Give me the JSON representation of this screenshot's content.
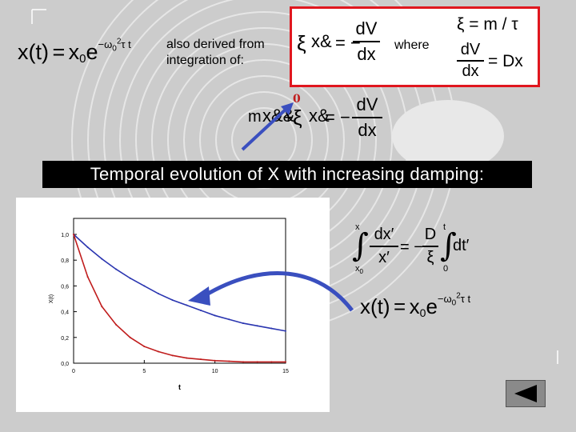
{
  "colors": {
    "banner_bg": "#000000",
    "banner_text": "#ffffff",
    "box_border": "#e0161e",
    "arrow": "#3a4fbf",
    "series_blue": "#2a35b0",
    "series_red": "#c01c1c"
  },
  "top_equation": {
    "lhs": "x(t)",
    "eq": "=",
    "base": "x",
    "sub": "0",
    "e": "e",
    "exp": "−ω",
    "exp_sub": "0",
    "exp_sup": "2",
    "exp_tail": "τ t"
  },
  "derived_text": {
    "line1": "also derived from",
    "line2": "integration of:"
  },
  "box": {
    "eq1": {
      "xi": "ξ",
      "xdot": "x&",
      "eq": "= −",
      "num": "dV",
      "den": "dx"
    },
    "where": "where",
    "eq2": "ξ = m / τ",
    "eq3": {
      "num": "dV",
      "den": "dx",
      "rhs": "= Dx"
    }
  },
  "middle_equation": {
    "m": "m",
    "xddot": "x&&",
    "plus": "+",
    "xi": "ξ",
    "xdot": "x&",
    "eq": "= −",
    "num": "dV",
    "den": "dx",
    "zero": "0"
  },
  "banner": "Temporal evolution of X with increasing damping:",
  "integral": {
    "upper1": "x",
    "lower1": "x",
    "lower1_sub": "0",
    "num1": "dx′",
    "den1": "x′",
    "eq": "= −",
    "num2": "D",
    "den2": "ξ",
    "upper2": "t",
    "lower2": "0",
    "int2": "dt′"
  },
  "bottom_equation": {
    "lhs": "x(t)",
    "eq": "=",
    "base": "x",
    "sub": "0",
    "e": "e",
    "exp": "−ω",
    "exp_sub": "0",
    "exp_sup": "2",
    "exp_tail": "τ t"
  },
  "chart_data": {
    "type": "line",
    "xlabel": "t",
    "ylabel": "X(t)",
    "xlim": [
      0,
      15
    ],
    "ylim": [
      0,
      1.0
    ],
    "x_ticks": [
      "0",
      "5",
      "10",
      "15"
    ],
    "y_ticks": [
      "1,0",
      "0,8",
      "0,6",
      "0,4",
      "0,2",
      "0,0"
    ],
    "series": [
      {
        "color": "#2a35b0",
        "x": [
          0,
          1,
          2,
          3,
          4,
          5,
          6,
          7,
          8,
          9,
          10,
          11,
          12,
          13,
          14,
          15
        ],
        "values": [
          1.0,
          0.9,
          0.81,
          0.73,
          0.66,
          0.6,
          0.54,
          0.49,
          0.45,
          0.41,
          0.37,
          0.34,
          0.31,
          0.29,
          0.27,
          0.25
        ]
      },
      {
        "color": "#c01c1c",
        "x": [
          0,
          1,
          2,
          3,
          4,
          5,
          6,
          7,
          8,
          9,
          10,
          11,
          12,
          13,
          14,
          15
        ],
        "values": [
          1.0,
          0.67,
          0.44,
          0.3,
          0.2,
          0.13,
          0.09,
          0.06,
          0.04,
          0.03,
          0.02,
          0.015,
          0.01,
          0.01,
          0.01,
          0.01
        ]
      }
    ]
  }
}
